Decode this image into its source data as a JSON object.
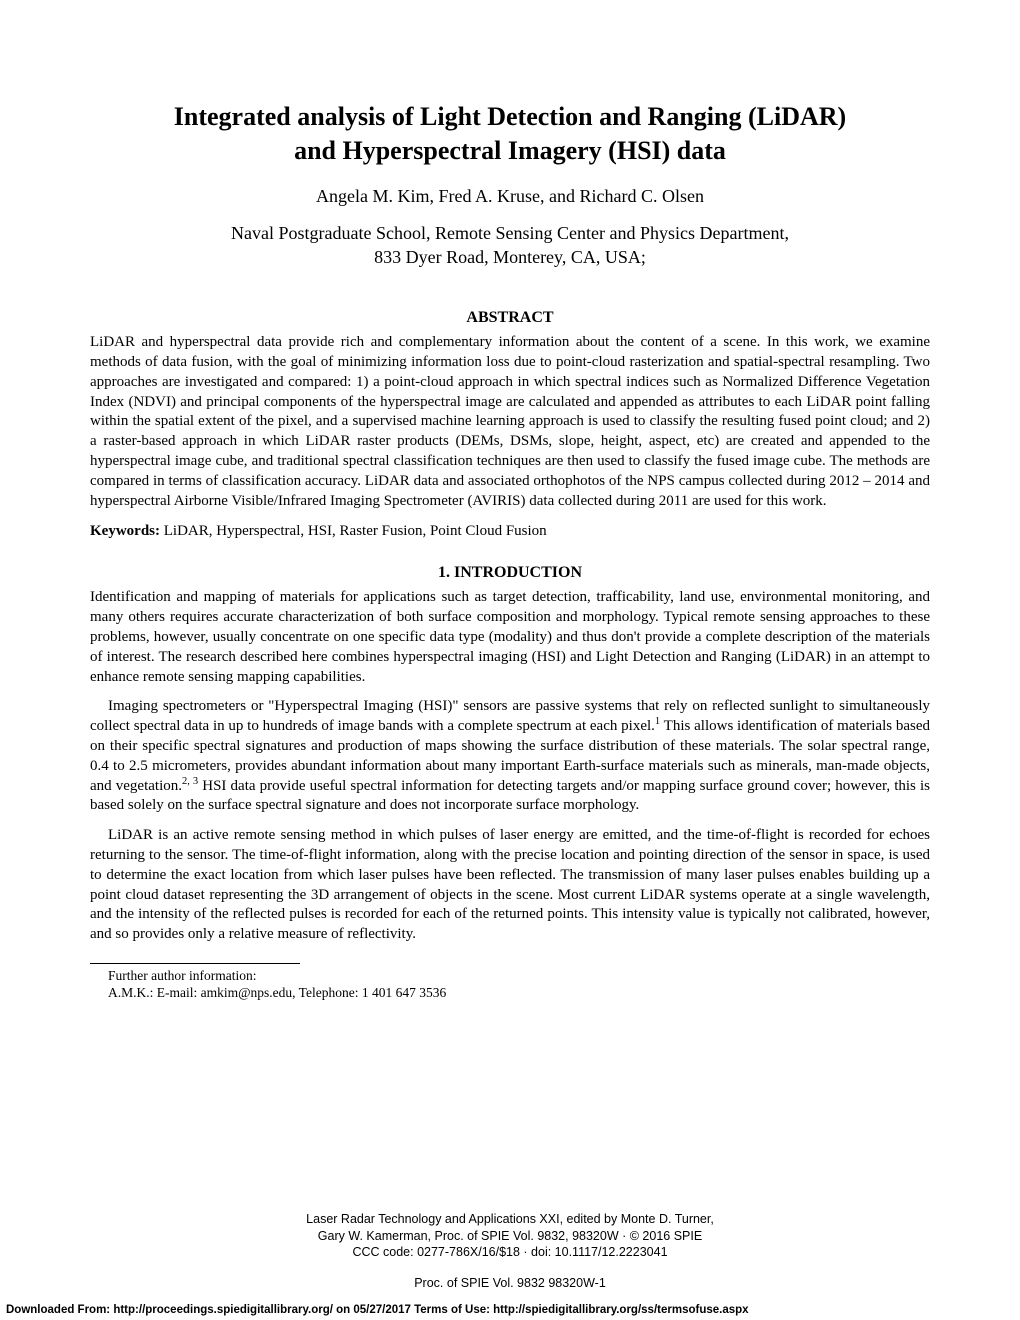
{
  "title_line1": "Integrated analysis of Light Detection and Ranging (LiDAR)",
  "title_line2": "and Hyperspectral Imagery (HSI) data",
  "authors": "Angela M. Kim, Fred A. Kruse, and Richard C. Olsen",
  "affiliation_line1": "Naval Postgraduate School, Remote Sensing Center and Physics Department,",
  "affiliation_line2": "833 Dyer Road, Monterey, CA, USA;",
  "abstract_heading": "ABSTRACT",
  "abstract_body": "LiDAR and hyperspectral data provide rich and complementary information about the content of a scene. In this work, we examine methods of data fusion, with the goal of minimizing information loss due to point-cloud rasterization and spatial-spectral resampling. Two approaches are investigated and compared: 1) a point-cloud approach in which spectral indices such as Normalized Difference Vegetation Index (NDVI) and principal components of the hyperspectral image are calculated and appended as attributes to each LiDAR point falling within the spatial extent of the pixel, and a supervised machine learning approach is used to classify the resulting fused point cloud; and 2) a raster-based approach in which LiDAR raster products (DEMs, DSMs, slope, height, aspect, etc) are created and appended to the hyperspectral image cube, and traditional spectral classification techniques are then used to classify the fused image cube. The methods are compared in terms of classification accuracy. LiDAR data and associated orthophotos of the NPS campus collected during 2012 – 2014 and hyperspectral Airborne Visible/Infrared Imaging Spectrometer (AVIRIS) data collected during 2011 are used for this work.",
  "keywords_label": "Keywords: ",
  "keywords_text": "LiDAR, Hyperspectral, HSI, Raster Fusion, Point Cloud Fusion",
  "section_1_heading": "1. INTRODUCTION",
  "intro_p1": "Identification and mapping of materials for applications such as target detection, trafficability, land use, environmental monitoring, and many others requires accurate characterization of both surface composition and morphology. Typical remote sensing approaches to these problems, however, usually concentrate on one specific data type (modality) and thus don't provide a complete description of the materials of interest. The research described here combines hyperspectral imaging (HSI) and Light Detection and Ranging (LiDAR) in an attempt to enhance remote sensing mapping capabilities.",
  "intro_p2_a": "Imaging spectrometers or \"Hyperspectral Imaging (HSI)\" sensors are passive systems that rely on reflected sunlight to simultaneously collect spectral data in up to hundreds of image bands with a complete spectrum at each pixel.",
  "intro_p2_sup1": "1",
  "intro_p2_b": " This allows identification of materials based on their specific spectral signatures and production of maps showing the surface distribution of these materials. The solar spectral range, 0.4 to 2.5 micrometers, provides abundant information about many important Earth-surface materials such as minerals, man-made objects, and vegetation.",
  "intro_p2_sup2": "2, 3",
  "intro_p2_c": " HSI data provide useful spectral information for detecting targets and/or mapping surface ground cover; however, this is based solely on the surface spectral signature and does not incorporate surface morphology.",
  "intro_p3": "LiDAR is an active remote sensing method in which pulses of laser energy are emitted, and the time-of-flight is recorded for echoes returning to the sensor. The time-of-flight information, along with the precise location and pointing direction of the sensor in space, is used to determine the exact location from which laser pulses have been reflected. The transmission of many laser pulses enables building up a point cloud dataset representing the 3D arrangement of objects in the scene. Most current LiDAR systems operate at a single wavelength, and the intensity of the reflected pulses is recorded for each of the returned points. This intensity value is typically not calibrated, however, and so provides only a relative measure of reflectivity.",
  "footnote_line1": "Further author information:",
  "footnote_line2": "A.M.K.: E-mail: amkim@nps.edu, Telephone: 1 401 647 3536",
  "proc_l1": "Laser Radar Technology and Applications XXI, edited by Monte D. Turner,",
  "proc_l2": "Gary W. Kamerman, Proc. of SPIE Vol. 9832, 98320W · © 2016 SPIE",
  "proc_l3": "CCC code: 0277-786X/16/$18 · doi: 10.1117/12.2223041",
  "proc_footer": "Proc. of SPIE Vol. 9832  98320W-1",
  "download_bar": "Downloaded From: http://proceedings.spiedigitallibrary.org/ on 05/27/2017 Terms of Use: http://spiedigitallibrary.org/ss/termsofuse.aspx"
}
